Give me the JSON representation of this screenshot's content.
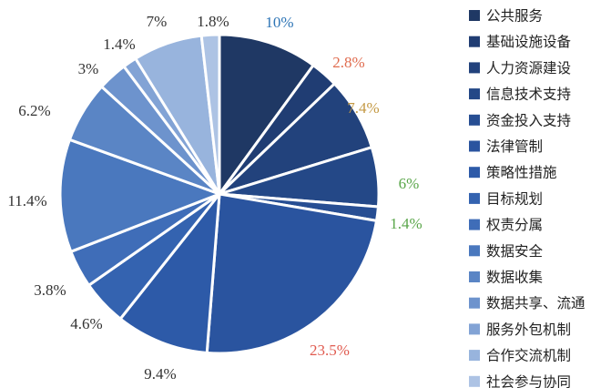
{
  "chart_data": {
    "type": "pie",
    "title": "",
    "legend_position": "right",
    "start_angle_deg": 0,
    "direction": "clockwise",
    "slices": [
      {
        "name": "公共服务",
        "value": 10,
        "label": "10%",
        "color": "#1f3864",
        "label_color": "#2e75b6"
      },
      {
        "name": "基础设施设备",
        "value": 2.8,
        "label": "2.8%",
        "color": "#203d73",
        "label_color": "#e06c4f"
      },
      {
        "name": "人力资源建设",
        "value": 7.4,
        "label": "7.4%",
        "color": "#22427c",
        "label_color": "#c49a45"
      },
      {
        "name": "信息技术支持",
        "value": 6,
        "label": "6%",
        "color": "#244887",
        "label_color": "#5aa64a"
      },
      {
        "name": "资金投入支持",
        "value": 1.4,
        "label": "1.4%",
        "color": "#274e93",
        "label_color": "#5aa64a"
      },
      {
        "name": "法律管制",
        "value": 23.5,
        "label": "23.5%",
        "color": "#2a549f",
        "label_color": "#e05a4f"
      },
      {
        "name": "策略性措施",
        "value": 9.4,
        "label": "9.4%",
        "color": "#2d5aa8",
        "label_color": "#333333"
      },
      {
        "name": "目标规划",
        "value": 4.6,
        "label": "4.6%",
        "color": "#3463b0",
        "label_color": "#333333"
      },
      {
        "name": "权责分属",
        "value": 3.8,
        "label": "3.8%",
        "color": "#3f6db8",
        "label_color": "#333333"
      },
      {
        "name": "数据安全",
        "value": 11.4,
        "label": "11.4%",
        "color": "#4a78be",
        "label_color": "#333333"
      },
      {
        "name": "数据收集",
        "value": 6.2,
        "label": "6.2%",
        "color": "#5a85c5",
        "label_color": "#333333"
      },
      {
        "name": "数据共享、流通",
        "value": 3,
        "label": "3%",
        "color": "#6d93cd",
        "label_color": "#333333"
      },
      {
        "name": "服务外包机制",
        "value": 1.4,
        "label": "1.4%",
        "color": "#82a3d5",
        "label_color": "#333333"
      },
      {
        "name": "合作交流机制",
        "value": 7,
        "label": "7%",
        "color": "#98b4dd",
        "label_color": "#333333"
      },
      {
        "name": "社会参与协同",
        "value": 1.8,
        "label": "1.8%",
        "color": "#adc3e4",
        "label_color": "#333333"
      }
    ]
  }
}
